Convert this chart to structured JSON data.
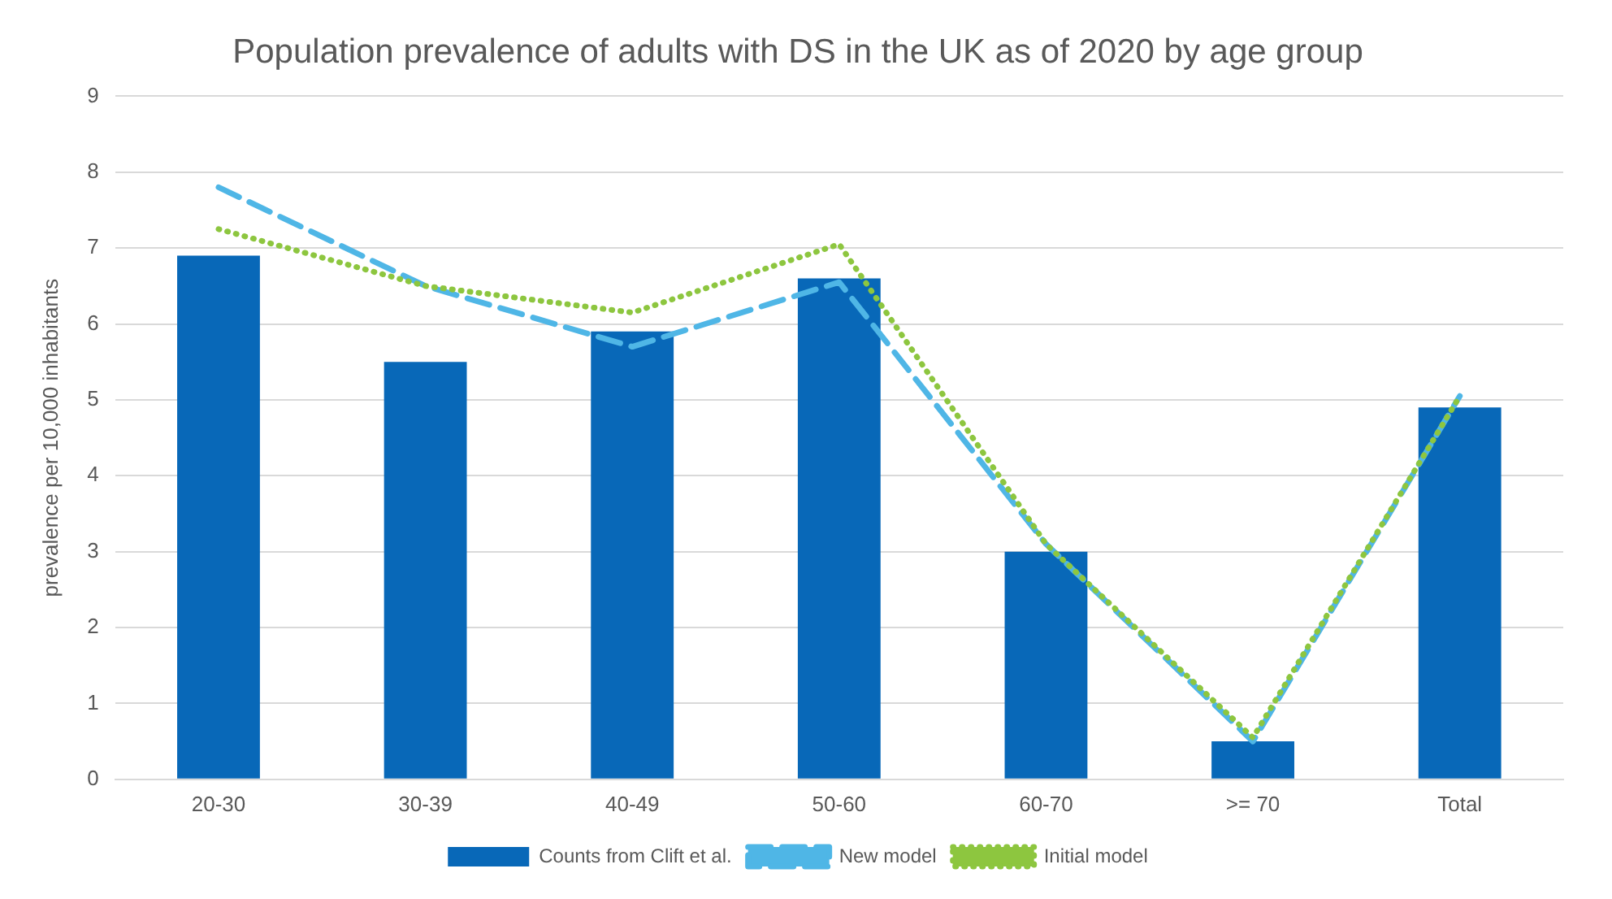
{
  "chart_data": {
    "type": "bar",
    "title": "Population prevalence of adults with DS in the UK as of 2020 by age group",
    "ylabel": "prevalence per 10,000 inhabitants",
    "categories": [
      "20-30",
      "30-39",
      "40-49",
      "50-60",
      "60-70",
      ">= 70",
      "Total"
    ],
    "series": [
      {
        "name": "Counts from Clift et al.",
        "color": "#0868b8",
        "values": [
          6.9,
          5.5,
          5.9,
          6.6,
          3.0,
          0.5,
          4.9
        ]
      },
      {
        "name": "New model",
        "type": "line",
        "line_style": "dashed",
        "color": "#4fb6e6",
        "values": [
          7.8,
          6.5,
          5.7,
          6.55,
          3.1,
          0.5,
          5.05
        ]
      },
      {
        "name": "Initial model",
        "type": "line",
        "line_style": "dotted",
        "color": "#8dc63f",
        "values": [
          7.25,
          6.5,
          6.15,
          7.05,
          3.1,
          0.55,
          5.05
        ]
      }
    ],
    "ylim": [
      0,
      9
    ],
    "yticks": [
      0,
      1,
      2,
      3,
      4,
      5,
      6,
      7,
      8,
      9
    ],
    "grid": "y",
    "legend": "bottom",
    "marker": "none"
  }
}
